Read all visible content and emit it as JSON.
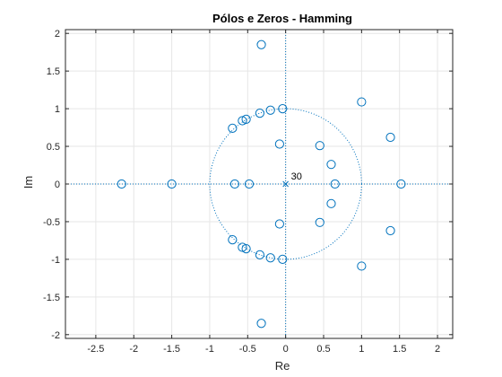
{
  "chart_data": {
    "type": "scatter",
    "title": "Pólos e Zeros - Hamming",
    "xlabel": "Re",
    "ylabel": "Im",
    "xlim": [
      -2.9,
      2.2
    ],
    "ylim": [
      -2.05,
      2.05
    ],
    "xticks": [
      -2.5,
      -2,
      -1.5,
      -1,
      -0.5,
      0,
      0.5,
      1,
      1.5,
      2
    ],
    "xtick_labels": [
      "-2.5",
      "-2",
      "-1.5",
      "-1",
      "-0.5",
      "0",
      "0.5",
      "1",
      "1.5",
      "2"
    ],
    "yticks": [
      -2,
      -1.5,
      -1,
      -0.5,
      0,
      0.5,
      1,
      1.5,
      2
    ],
    "ytick_labels": [
      "-2",
      "-1.5",
      "-1",
      "-0.5",
      "0",
      "0.5",
      "1",
      "1.5",
      "2"
    ],
    "grid": true,
    "unit_circle": true,
    "marker_color": "#0072BD",
    "zeros": [
      {
        "re": -0.32,
        "im": 1.85
      },
      {
        "re": -0.32,
        "im": -1.85
      },
      {
        "re": -0.04,
        "im": 1.0
      },
      {
        "re": -0.04,
        "im": -1.0
      },
      {
        "re": -0.2,
        "im": 0.98
      },
      {
        "re": -0.2,
        "im": -0.98
      },
      {
        "re": -0.34,
        "im": 0.94
      },
      {
        "re": -0.34,
        "im": -0.94
      },
      {
        "re": -0.52,
        "im": 0.86
      },
      {
        "re": -0.52,
        "im": -0.86
      },
      {
        "re": -0.57,
        "im": 0.84
      },
      {
        "re": -0.57,
        "im": -0.84
      },
      {
        "re": -0.7,
        "im": 0.74
      },
      {
        "re": -0.7,
        "im": -0.74
      },
      {
        "re": -0.08,
        "im": 0.53
      },
      {
        "re": -0.08,
        "im": -0.53
      },
      {
        "re": 0.45,
        "im": 0.51
      },
      {
        "re": 0.45,
        "im": -0.51
      },
      {
        "re": 0.6,
        "im": 0.26
      },
      {
        "re": 0.6,
        "im": -0.26
      },
      {
        "re": 1.0,
        "im": 1.09
      },
      {
        "re": 1.0,
        "im": -1.09
      },
      {
        "re": 1.38,
        "im": 0.62
      },
      {
        "re": 1.38,
        "im": -0.62
      },
      {
        "re": -2.16,
        "im": 0.0
      },
      {
        "re": -1.5,
        "im": 0.0
      },
      {
        "re": -0.67,
        "im": 0.0
      },
      {
        "re": -0.48,
        "im": 0.0
      },
      {
        "re": 0.65,
        "im": 0.0
      },
      {
        "re": 1.52,
        "im": 0.0
      }
    ],
    "poles": [
      {
        "re": 0.0,
        "im": 0.0,
        "multiplicity_label": "30"
      }
    ]
  }
}
